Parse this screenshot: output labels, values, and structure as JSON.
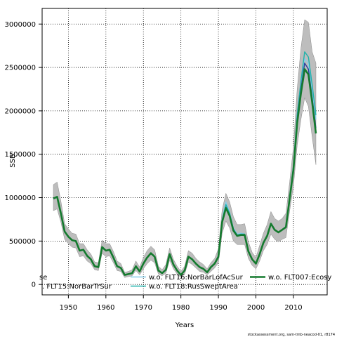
{
  "chart_data": {
    "type": "line",
    "title": "",
    "xlabel": "Years",
    "ylabel": "SSB",
    "xlim": [
      1943,
      2019
    ],
    "ylim": [
      -120000,
      3180000
    ],
    "xticks": [
      1950,
      1960,
      1970,
      1980,
      1990,
      2000,
      2010
    ],
    "yticks": [
      0,
      500000,
      1000000,
      1500000,
      2000000,
      2500000,
      3000000
    ],
    "grid": true,
    "legend_position": "bottom (clipped at left)",
    "legend_entries": [
      {
        "label": "se",
        "color": "#9e9e9e"
      },
      {
        "label": ". FLT15:NorBarTrSur",
        "color": "#2c3e9b"
      },
      {
        "label": "w.o. FLT16:NorBarLofAcSur",
        "color": "#87ceeb"
      },
      {
        "label": "w.o. FLT18:RusSweptArea",
        "color": "#20b2aa"
      },
      {
        "label": "w.o. FLT007:Ecosy",
        "color": "#147a2e"
      }
    ],
    "x": [
      1946,
      1947,
      1948,
      1949,
      1950,
      1951,
      1952,
      1953,
      1954,
      1955,
      1956,
      1957,
      1958,
      1959,
      1960,
      1961,
      1962,
      1963,
      1964,
      1965,
      1966,
      1967,
      1968,
      1969,
      1970,
      1971,
      1972,
      1973,
      1974,
      1975,
      1976,
      1977,
      1978,
      1979,
      1980,
      1981,
      1982,
      1983,
      1984,
      1985,
      1986,
      1987,
      1988,
      1989,
      1990,
      1991,
      1992,
      1993,
      1994,
      1995,
      1996,
      1997,
      1998,
      1999,
      2000,
      2001,
      2002,
      2003,
      2004,
      2005,
      2006,
      2007,
      2008,
      2009,
      2010,
      2011,
      2012,
      2013,
      2014,
      2015,
      2016
    ],
    "series": [
      {
        "name": "w.o. FLT007:Ecosy",
        "color": "#147a2e",
        "values": [
          990000,
          1010000,
          820000,
          610000,
          550000,
          510000,
          500000,
          390000,
          400000,
          330000,
          290000,
          210000,
          200000,
          430000,
          390000,
          400000,
          310000,
          210000,
          190000,
          110000,
          120000,
          130000,
          210000,
          150000,
          240000,
          310000,
          360000,
          320000,
          160000,
          130000,
          170000,
          350000,
          230000,
          160000,
          110000,
          160000,
          320000,
          290000,
          240000,
          200000,
          180000,
          140000,
          200000,
          240000,
          320000,
          720000,
          880000,
          790000,
          620000,
          560000,
          570000,
          570000,
          380000,
          290000,
          240000,
          350000,
          480000,
          560000,
          700000,
          630000,
          600000,
          630000,
          660000,
          990000,
          1320000,
          1860000,
          2200000,
          2480000,
          2420000,
          2100000,
          1740000
        ]
      },
      {
        "name": "w.o. FLT18:RusSweptArea",
        "color": "#20b2aa",
        "values": [
          990000,
          1010000,
          820000,
          610000,
          550000,
          510000,
          500000,
          390000,
          400000,
          330000,
          290000,
          210000,
          200000,
          430000,
          390000,
          400000,
          310000,
          210000,
          190000,
          110000,
          120000,
          130000,
          210000,
          150000,
          240000,
          310000,
          360000,
          320000,
          160000,
          130000,
          170000,
          350000,
          230000,
          160000,
          110000,
          160000,
          320000,
          290000,
          240000,
          200000,
          180000,
          140000,
          200000,
          240000,
          330000,
          740000,
          920000,
          820000,
          640000,
          570000,
          580000,
          580000,
          390000,
          290000,
          240000,
          350000,
          480000,
          560000,
          700000,
          630000,
          600000,
          630000,
          670000,
          1010000,
          1360000,
          1950000,
          2340000,
          2680000,
          2620000,
          2300000,
          1950000
        ]
      },
      {
        "name": "w.o. FLT16:NorBarLofAcSur",
        "color": "#87ceeb",
        "values": [
          990000,
          1010000,
          820000,
          610000,
          550000,
          510000,
          500000,
          390000,
          400000,
          330000,
          290000,
          210000,
          200000,
          430000,
          390000,
          400000,
          310000,
          210000,
          190000,
          110000,
          120000,
          130000,
          210000,
          150000,
          240000,
          310000,
          360000,
          320000,
          160000,
          130000,
          170000,
          350000,
          230000,
          160000,
          110000,
          160000,
          320000,
          290000,
          240000,
          200000,
          180000,
          140000,
          200000,
          240000,
          330000,
          750000,
          950000,
          830000,
          650000,
          580000,
          590000,
          580000,
          390000,
          290000,
          240000,
          350000,
          480000,
          560000,
          700000,
          630000,
          600000,
          630000,
          670000,
          1020000,
          1370000,
          1960000,
          2300000,
          2600000,
          2550000,
          2250000,
          1900000
        ]
      },
      {
        "name": ". FLT15:NorBarTrSur",
        "color": "#2c3e9b",
        "values": [
          990000,
          1010000,
          820000,
          610000,
          550000,
          510000,
          500000,
          390000,
          400000,
          330000,
          290000,
          210000,
          200000,
          430000,
          390000,
          400000,
          310000,
          210000,
          190000,
          110000,
          120000,
          130000,
          210000,
          150000,
          240000,
          310000,
          360000,
          320000,
          160000,
          130000,
          170000,
          350000,
          230000,
          160000,
          110000,
          160000,
          320000,
          290000,
          240000,
          200000,
          180000,
          140000,
          200000,
          240000,
          320000,
          730000,
          890000,
          800000,
          630000,
          560000,
          570000,
          570000,
          380000,
          290000,
          240000,
          350000,
          480000,
          560000,
          700000,
          630000,
          600000,
          630000,
          660000,
          1000000,
          1340000,
          1900000,
          2250000,
          2550000,
          2480000,
          2150000,
          1800000
        ]
      }
    ],
    "band": {
      "name": "se",
      "color": "#9e9e9e",
      "upper": [
        1150000,
        1180000,
        960000,
        700000,
        640000,
        590000,
        580000,
        470000,
        470000,
        400000,
        350000,
        260000,
        250000,
        510000,
        470000,
        470000,
        380000,
        270000,
        240000,
        140000,
        150000,
        170000,
        270000,
        200000,
        310000,
        390000,
        440000,
        400000,
        210000,
        170000,
        230000,
        420000,
        290000,
        210000,
        150000,
        210000,
        390000,
        360000,
        300000,
        260000,
        230000,
        180000,
        250000,
        300000,
        410000,
        860000,
        1050000,
        950000,
        780000,
        690000,
        690000,
        700000,
        490000,
        370000,
        310000,
        450000,
        590000,
        690000,
        840000,
        760000,
        730000,
        760000,
        820000,
        1180000,
        1580000,
        2250000,
        2720000,
        3050000,
        3020000,
        2680000,
        2550000
      ],
      "lower": [
        850000,
        870000,
        720000,
        520000,
        470000,
        430000,
        420000,
        320000,
        330000,
        270000,
        240000,
        170000,
        160000,
        360000,
        320000,
        330000,
        250000,
        160000,
        150000,
        80000,
        90000,
        100000,
        160000,
        110000,
        180000,
        240000,
        280000,
        250000,
        120000,
        100000,
        130000,
        280000,
        180000,
        120000,
        80000,
        120000,
        260000,
        230000,
        190000,
        150000,
        140000,
        110000,
        150000,
        190000,
        250000,
        590000,
        730000,
        650000,
        500000,
        460000,
        460000,
        460000,
        300000,
        220000,
        180000,
        270000,
        390000,
        460000,
        580000,
        520000,
        490000,
        520000,
        540000,
        850000,
        1130000,
        1600000,
        1900000,
        2150000,
        2050000,
        1700000,
        1380000
      ]
    }
  },
  "footer": "stockassessment.org, sam-tmb-neacod-01, r8174"
}
